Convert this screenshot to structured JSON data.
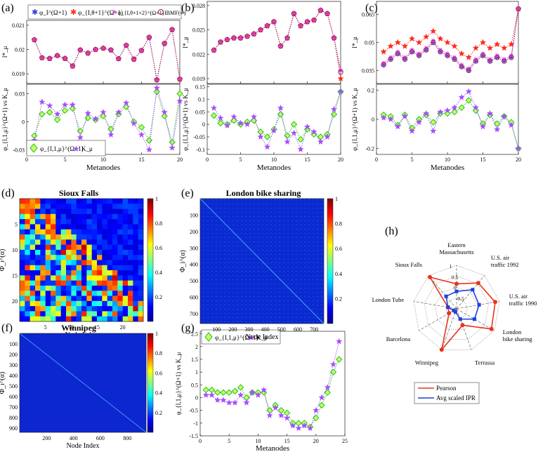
{
  "colors": {
    "blue": "#2b3fe0",
    "red": "#ff2a1a",
    "magenta": "#e040e6",
    "ibmf": "#9b1f5a",
    "green": "#22c21f",
    "green_fill": "#c8ff66",
    "purple": "#a64dff",
    "dotline": "#7a7a9a"
  },
  "chart_data": [
    {
      "panel": "(a)",
      "type": "line",
      "top": {
        "ylabel": "I*_μ",
        "ylim": [
          0.0186,
          0.0212
        ],
        "yticks": [
          "0.021",
          "0.02",
          "0.019"
        ],
        "ytick_vals": [
          0.021,
          0.02,
          0.019
        ],
        "x": [
          1,
          2,
          3,
          4,
          5,
          6,
          7,
          8,
          9,
          10,
          11,
          12,
          13,
          14,
          15,
          16,
          17,
          18,
          19,
          20
        ],
        "series": [
          {
            "name": "φ_I^(Ω+1)",
            "marker": "asterisk",
            "color": "blue",
            "values": [
              0.0204,
              0.01966,
              0.01963,
              0.01975,
              0.01963,
              0.01932,
              0.01998,
              0.01985,
              0.02,
              0.02005,
              0.01998,
              0.01962,
              0.02017,
              0.0196,
              0.01996,
              0.0205,
              0.01875,
              0.02025,
              0.02082,
              0.01878
            ]
          },
          {
            "name": "φ_{I,θ+1}^(Ω+1)",
            "marker": "star",
            "color": "red",
            "values": [
              0.0204,
              0.01966,
              0.01963,
              0.01975,
              0.01963,
              0.01932,
              0.01998,
              0.01985,
              0.02,
              0.02005,
              0.01998,
              0.01962,
              0.02017,
              0.0196,
              0.01996,
              0.0205,
              0.01875,
              0.02025,
              0.02082,
              0.01878
            ]
          },
          {
            "name": "φ_{I,θ+1+2}^(Ω+1)",
            "marker": "cross",
            "color": "magenta",
            "values": [
              0.0204,
              0.01966,
              0.01963,
              0.01975,
              0.01963,
              0.01932,
              0.01998,
              0.01985,
              0.02,
              0.02005,
              0.01998,
              0.01962,
              0.02017,
              0.0196,
              0.01996,
              0.0205,
              0.01875,
              0.02025,
              0.02082,
              0.01878
            ]
          },
          {
            "name": "IBMF(∞)",
            "marker": "circle",
            "color": "ibmf",
            "values": [
              0.0204,
              0.01966,
              0.01963,
              0.01975,
              0.01963,
              0.01932,
              0.01998,
              0.01985,
              0.02,
              0.02005,
              0.01998,
              0.01962,
              0.02017,
              0.0196,
              0.01996,
              0.0205,
              0.01875,
              0.02025,
              0.02082,
              0.01878
            ]
          }
        ]
      },
      "bottom": {
        "ylabel": "φ_{I,1,μ}^(Ω+1) vs K_μ",
        "ylim": [
          -0.035,
          0.04
        ],
        "yticks": [
          "0.03",
          "0",
          "-0.03"
        ],
        "ytick_vals": [
          0.03,
          0,
          -0.03
        ],
        "xlabel": "Metanodes",
        "xlim": [
          0,
          20
        ],
        "xticks": [
          "0",
          "5",
          "10",
          "15",
          "20"
        ],
        "x": [
          1,
          2,
          3,
          4,
          5,
          6,
          7,
          8,
          9,
          10,
          11,
          12,
          13,
          14,
          15,
          16,
          17,
          18,
          19,
          20
        ],
        "series": [
          {
            "name": "φ_{I,1,μ}^(Ω+1)",
            "marker": "diamond",
            "color": "green",
            "values": [
              -0.015,
              0.008,
              0.01,
              0.002,
              0.012,
              0.014,
              -0.01,
              0.004,
              0.002,
              0.006,
              -0.008,
              0.008,
              0.016,
              0.0,
              -0.006,
              -0.02,
              0.032,
              0.006,
              -0.022,
              0.03
            ]
          },
          {
            "name": "K_μ",
            "marker": "star",
            "color": "purple",
            "values": [
              -0.02,
              0.021,
              0.017,
              0.008,
              0.018,
              0.018,
              -0.017,
              0.009,
              0.003,
              0.01,
              -0.014,
              0.01,
              0.02,
              -0.002,
              -0.014,
              -0.03,
              0.036,
              0.01,
              -0.028,
              0.022
            ]
          }
        ]
      }
    },
    {
      "panel": "(b)",
      "type": "line",
      "top": {
        "ylabel": "I*_μ",
        "ylim": [
          0.0184,
          0.0285
        ],
        "yticks": [
          "0.028",
          "0.025",
          "0.022",
          "0.019"
        ],
        "ytick_vals": [
          0.028,
          0.025,
          0.022,
          0.019
        ],
        "x": [
          1,
          2,
          3,
          4,
          5,
          6,
          7,
          8,
          9,
          10,
          11,
          12,
          13,
          14,
          15,
          16,
          17,
          18,
          19,
          20
        ],
        "series": [
          {
            "name": "φ_I^(Ω+1)",
            "values": [
              0.0225,
              0.0235,
              0.0238,
              0.024,
              0.024,
              0.0242,
              0.0245,
              0.025,
              0.0255,
              0.026,
              0.023,
              0.024,
              0.027,
              0.0255,
              0.026,
              0.0262,
              0.0274,
              0.027,
              0.024,
              0.02
            ]
          },
          {
            "name": "φ_{I,θ+1}^(Ω+1)",
            "values": [
              0.0225,
              0.0235,
              0.0238,
              0.024,
              0.024,
              0.0242,
              0.0245,
              0.025,
              0.0255,
              0.026,
              0.023,
              0.024,
              0.027,
              0.0255,
              0.026,
              0.0262,
              0.0274,
              0.027,
              0.024,
              0.019
            ]
          },
          {
            "name": "φ_{I,θ+1+2}^(Ω+1)",
            "values": [
              0.0225,
              0.0235,
              0.0238,
              0.024,
              0.024,
              0.0242,
              0.0245,
              0.025,
              0.0255,
              0.026,
              0.023,
              0.024,
              0.027,
              0.0255,
              0.026,
              0.0262,
              0.0274,
              0.027,
              0.024,
              0.02
            ]
          },
          {
            "name": "IBMF(∞)",
            "values": [
              0.0225,
              0.0235,
              0.0238,
              0.024,
              0.024,
              0.0242,
              0.0245,
              0.025,
              0.0255,
              0.026,
              0.023,
              0.024,
              0.027,
              0.0255,
              0.026,
              0.0262,
              0.0274,
              0.027,
              0.024,
              0.0198
            ]
          }
        ]
      },
      "bottom": {
        "ylabel": "φ_{I,1,μ}^(Ω+1) vs K_μ",
        "ylim": [
          -0.12,
          0.16
        ],
        "yticks": [
          "0.15",
          "0.1",
          "0.05",
          "0",
          "-0.05",
          "-0.1"
        ],
        "ytick_vals": [
          0.15,
          0.1,
          0.05,
          0,
          -0.05,
          -0.1
        ],
        "xlabel": "Metanodes",
        "xlim": [
          0,
          20
        ],
        "xticks": [
          "0",
          "5",
          "10",
          "15",
          "20"
        ],
        "x": [
          1,
          2,
          3,
          4,
          5,
          6,
          7,
          8,
          9,
          10,
          11,
          12,
          13,
          14,
          15,
          16,
          17,
          18,
          19,
          20
        ],
        "series": [
          {
            "name": "φ_{I,1,μ}^(Ω+1)",
            "values": [
              0.035,
              0.005,
              0.0,
              0.015,
              0.0,
              0.01,
              0.015,
              -0.03,
              -0.05,
              -0.02,
              0.04,
              -0.045,
              0.0,
              -0.06,
              -0.02,
              -0.04,
              -0.05,
              -0.04,
              0.04,
              0.13
            ]
          },
          {
            "name": "K_μ",
            "values": [
              0.065,
              0.025,
              -0.005,
              0.03,
              0.005,
              0.0,
              0.03,
              -0.05,
              -0.09,
              -0.025,
              0.065,
              -0.07,
              -0.035,
              -0.1,
              -0.01,
              -0.03,
              -0.07,
              -0.05,
              0.06,
              0.13
            ]
          }
        ]
      }
    },
    {
      "panel": "(c)",
      "type": "line",
      "top": {
        "ylabel": "I*_μ",
        "ylim": [
          0.028,
          0.072
        ],
        "yticks": [
          "0.065",
          "0.05",
          "0.035"
        ],
        "ytick_vals": [
          0.065,
          0.05,
          0.035
        ],
        "x": [
          1,
          2,
          3,
          4,
          5,
          6,
          7,
          8,
          9,
          10,
          11,
          12,
          13,
          14,
          15,
          16,
          17,
          18,
          19,
          20
        ],
        "series": [
          {
            "name": "φ_I^(Ω+1)",
            "values": [
              0.038,
              0.041,
              0.044,
              0.041,
              0.045,
              0.043,
              0.046,
              0.05,
              0.045,
              0.043,
              0.041,
              0.037,
              0.035,
              0.04,
              0.043,
              0.04,
              0.042,
              0.04,
              0.042,
              0.068
            ]
          },
          {
            "name": "φ_{I,θ+1}^(Ω+1)",
            "values": [
              0.045,
              0.048,
              0.05,
              0.048,
              0.052,
              0.05,
              0.053,
              0.056,
              0.052,
              0.05,
              0.048,
              0.044,
              0.042,
              0.047,
              0.05,
              0.047,
              0.049,
              0.047,
              0.049,
              0.068
            ]
          },
          {
            "name": "φ_{I,θ+1+2}^(Ω+1)",
            "values": [
              0.039,
              0.042,
              0.045,
              0.042,
              0.046,
              0.044,
              0.047,
              0.051,
              0.046,
              0.044,
              0.042,
              0.038,
              0.036,
              0.041,
              0.044,
              0.041,
              0.043,
              0.041,
              0.043,
              0.068
            ]
          },
          {
            "name": "IBMF(∞)",
            "values": [
              0.038,
              0.041,
              0.044,
              0.041,
              0.045,
              0.043,
              0.046,
              0.05,
              0.045,
              0.043,
              0.041,
              0.037,
              0.035,
              0.04,
              0.043,
              0.04,
              0.042,
              0.04,
              0.042,
              0.068
            ]
          }
        ]
      },
      "bottom": {
        "ylabel": "φ_{I,1,μ}^(Ω+1) vs K_μ",
        "ylim": [
          -0.24,
          0.24
        ],
        "yticks": [
          "0.2",
          "0",
          "-0.2"
        ],
        "ytick_vals": [
          0.2,
          0,
          -0.2
        ],
        "xlabel": "Metanodes",
        "xlim": [
          0,
          20
        ],
        "xticks": [
          "0",
          "5",
          "10",
          "15",
          "20"
        ],
        "x": [
          1,
          2,
          3,
          4,
          5,
          6,
          7,
          8,
          9,
          10,
          11,
          12,
          13,
          14,
          15,
          16,
          17,
          18,
          19,
          20
        ],
        "series": [
          {
            "name": "φ_{I,1,μ}^(Ω+1)",
            "values": [
              0.03,
              0.02,
              -0.04,
              0.03,
              -0.06,
              0.0,
              0.03,
              -0.02,
              0.04,
              0.04,
              0.05,
              0.08,
              0.13,
              0.06,
              -0.03,
              0.03,
              -0.03,
              0.02,
              -0.02,
              -0.2
            ]
          },
          {
            "name": "K_μ",
            "values": [
              0.01,
              0.0,
              -0.05,
              0.02,
              -0.08,
              -0.02,
              0.04,
              -0.08,
              0.05,
              0.06,
              0.08,
              0.15,
              0.19,
              0.08,
              -0.05,
              0.04,
              -0.07,
              0.02,
              -0.04,
              -0.2
            ]
          }
        ]
      }
    },
    {
      "panel": "(g)",
      "type": "line",
      "ylabel": "φ_{I,1,μ}^(Ω+1) vs K_μ",
      "ylim": [
        -1.5,
        2.6
      ],
      "yticks": [
        "2.5",
        "2",
        "1.5",
        "1",
        "0.5",
        "0",
        "-0.5",
        "-1",
        "-1.5"
      ],
      "ytick_vals": [
        2.5,
        2,
        1.5,
        1,
        0.5,
        0,
        -0.5,
        -1,
        -1.5
      ],
      "xlabel": "Metanodes",
      "xlim": [
        0,
        25
      ],
      "xticks": [
        "0",
        "5",
        "10",
        "15",
        "20",
        "25"
      ],
      "x": [
        1,
        2,
        3,
        4,
        5,
        6,
        7,
        8,
        9,
        10,
        11,
        12,
        13,
        14,
        15,
        16,
        17,
        18,
        19,
        20,
        21,
        22,
        23,
        24
      ],
      "series": [
        {
          "name": "φ_{I,1,μ}^(Ω+1)",
          "values": [
            0.3,
            0.3,
            0.2,
            0.2,
            0.2,
            0.25,
            0.4,
            0.0,
            0.2,
            0.2,
            0.2,
            -0.5,
            -0.3,
            -0.5,
            -0.6,
            -1.0,
            -1.0,
            -1.0,
            -1.15,
            -0.8,
            -0.3,
            0.2,
            1.0,
            1.5
          ]
        },
        {
          "name": "K_μ",
          "values": [
            0.1,
            0.1,
            -0.1,
            -0.1,
            -0.2,
            -0.2,
            0.1,
            -0.2,
            0.2,
            0.1,
            0.3,
            -0.7,
            -0.4,
            -0.7,
            -0.8,
            -1.1,
            -1.2,
            -1.1,
            -1.2,
            -0.5,
            0.0,
            0.4,
            1.3,
            2.2
          ]
        }
      ]
    },
    {
      "panel": "(h)",
      "type": "radar",
      "axes": [
        "Eastern Massachusetts",
        "U.S. air traffic 1992",
        "U.S. air traffic 1990",
        "London bike sharing",
        "Terrassa",
        "Winnipeg",
        "Barcelona",
        "London Tube",
        "Sioux Falls"
      ],
      "rings": [
        -1,
        -0.5,
        0,
        0.5,
        1
      ],
      "series": [
        {
          "name": "Pearson",
          "color": "#e8331e",
          "values": [
            0.15,
            0.55,
            0.8,
            0.85,
            -0.2,
            1.0,
            -0.6,
            -0.6,
            0.9
          ]
        },
        {
          "name": "Avg scaled IPR",
          "color": "#1f3fe0",
          "values": [
            -0.2,
            0.15,
            0.05,
            -0.05,
            -0.5,
            -0.85,
            -0.85,
            -0.6,
            -0.25
          ]
        }
      ]
    }
  ],
  "labels": {
    "a": "(a)",
    "b": "(b)",
    "c": "(c)",
    "d": "(d)",
    "e": "(e)",
    "f": "(f)",
    "g": "(g)",
    "h": "(h)",
    "sioux_title": "Sioux Falls",
    "london_title": "London bike sharing",
    "winnipeg_title": "Winnipeg",
    "node_index": "Node Index",
    "metanodes": "Metanodes",
    "legend_a": [
      "φ_I^(Ω+1)",
      "φ_{I,θ+1}^(Ω+1)",
      "φ_{I,θ+1+2}^(Ω+1)",
      "IBMF(∞)"
    ],
    "legend_bottom": [
      "φ_{I,1,μ}^(Ω+1)",
      "K_μ"
    ],
    "legend_h": [
      "Pearson",
      "Avg scaled IPR"
    ]
  },
  "heatmaps": [
    {
      "name": "Sioux Falls",
      "ylabel": "Φ_i^(α)",
      "xticks": [
        "5",
        "10",
        "15",
        "20"
      ],
      "yticks": [
        "5",
        "10",
        "15",
        "20"
      ],
      "n": 24,
      "colorbar": [
        "1",
        "0.8",
        "0.6",
        "0.4",
        "0.2"
      ]
    },
    {
      "name": "London bike sharing",
      "ylabel": "Φ_i^(α)",
      "xticks": [
        "100",
        "200",
        "300",
        "400",
        "500",
        "600",
        "700"
      ],
      "yticks": [
        "100",
        "200",
        "300",
        "400",
        "500",
        "600",
        "700"
      ],
      "colorbar": [
        "1",
        "0.8",
        "0.6",
        "0.4",
        "0.2"
      ]
    },
    {
      "name": "Winnipeg",
      "ylabel": "Φ_i^(α)",
      "xticks": [
        "200",
        "400",
        "600",
        "800"
      ],
      "yticks": [
        "100",
        "200",
        "300",
        "400",
        "500",
        "600",
        "700",
        "800",
        "900"
      ],
      "colorbar": [
        "1",
        "0.8",
        "0.6",
        "0.4",
        "0.2"
      ]
    }
  ]
}
